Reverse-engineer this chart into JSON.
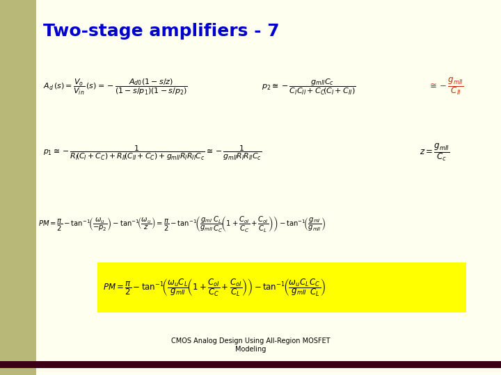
{
  "title": "Two-stage amplifiers - 7",
  "title_color": "#0000CC",
  "title_fontsize": 18,
  "bg_color": "#FFFFF0",
  "left_bar_color": "#B8B878",
  "bottom_bar_color": "#3B0015",
  "yellow_box_color": "#FFFF00",
  "red_color": "#CC2200",
  "footer": "CMOS Analog Design Using All-Region MOSFET\nModeling",
  "left_bar_width": 0.072,
  "bottom_bar_height": 0.018
}
